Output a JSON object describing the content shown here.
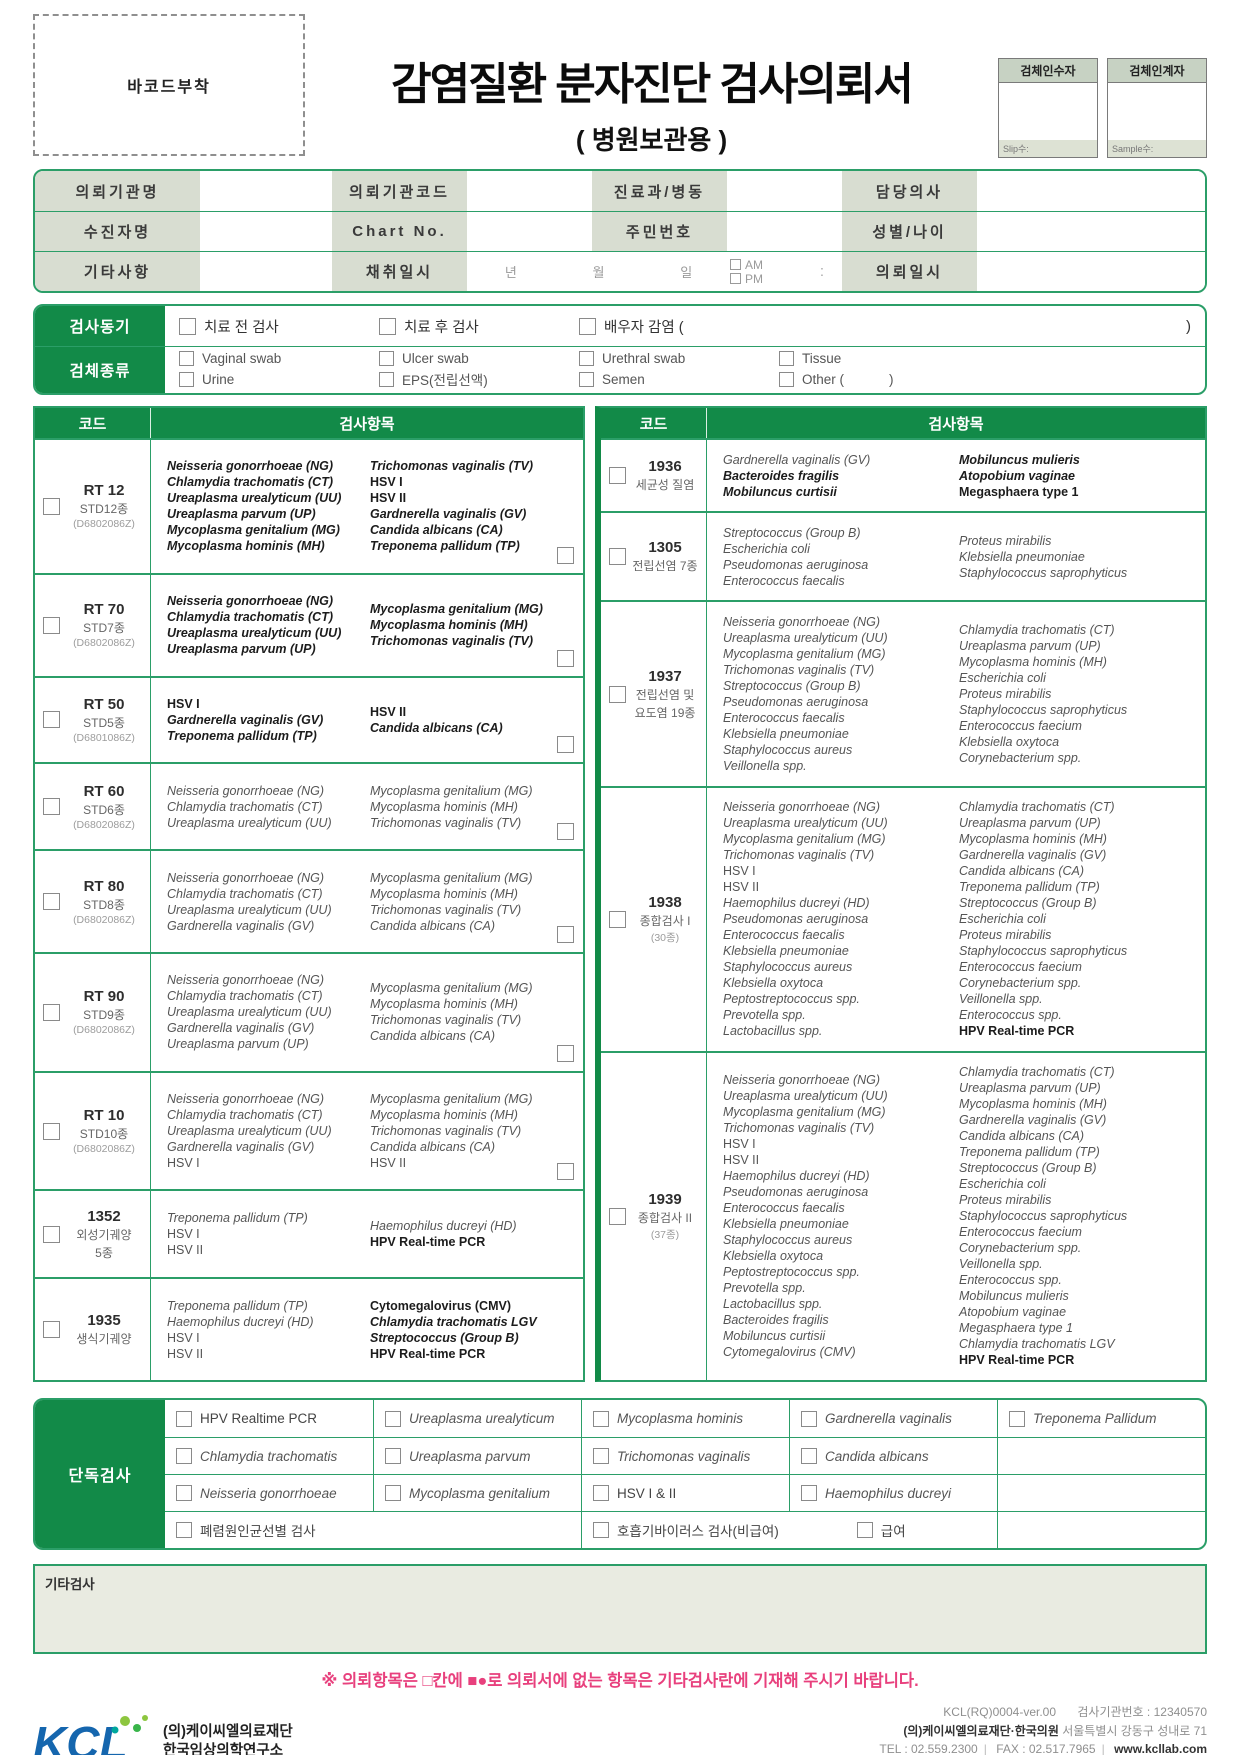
{
  "colors": {
    "green_fill": "#128a48",
    "green_border": "#2b9e68",
    "label_bg": "#d8ddd1",
    "note_pink": "#e8407d",
    "logo_blue": "#1566ae"
  },
  "header": {
    "barcode_label": "바코드부착",
    "title": "감염질환 분자진단 검사의뢰서",
    "subtitle": "( 병원보관용 )",
    "receivers": [
      {
        "title": "검체인수자",
        "footer": "Slip수:"
      },
      {
        "title": "검체인계자",
        "footer": "Sample수:"
      }
    ]
  },
  "info_table": {
    "rows": [
      {
        "c1": "의뢰기관명",
        "c2": "의뢰기관코드",
        "c3": "진료과/병동",
        "c4": "담당의사"
      },
      {
        "c1": "수진자명",
        "c2": "Chart No.",
        "c3": "주민번호",
        "c4": "성별/나이"
      }
    ],
    "row3": {
      "c1": "기타사항",
      "c2": "채취일시",
      "year": "년",
      "month": "월",
      "day": "일",
      "am": "AM",
      "pm": "PM",
      "colon": ":",
      "c4": "의뢰일시"
    }
  },
  "motive": {
    "label": "검사동기",
    "opt1": "치료 전 검사",
    "opt2": "치료 후 검사",
    "opt3": "배우자 감염 (",
    "close": ")"
  },
  "specimen": {
    "label": "검체종류",
    "r1": [
      "Vaginal swab",
      "Ulcer swab",
      "Urethral swab",
      "Tissue"
    ],
    "r2": [
      "Urine",
      "EPS(전립선액)",
      "Semen",
      "Other (            )"
    ]
  },
  "panel_table": {
    "code_header": "코드",
    "items_header": "검사항목",
    "left_panels": [
      {
        "code": "RT 12",
        "sublines": [
          "STD12종",
          "(D6802086Z)"
        ],
        "default_bold": true,
        "trailing_checkbox": true,
        "col1": [
          "Neisseria gonorrhoeae (NG)",
          "Chlamydia trachomatis (CT)",
          "Ureaplasma urealyticum (UU)",
          "Ureaplasma parvum (UP)",
          "Mycoplasma genitalium (MG)",
          "Mycoplasma hominis (MH)"
        ],
        "col2": [
          "Trichomonas vaginalis (TV)",
          "HSV I",
          "HSV II",
          "Gardnerella vaginalis (GV)",
          "Candida albicans (CA)",
          "Treponema pallidum (TP)"
        ]
      },
      {
        "code": "RT 70",
        "sublines": [
          "STD7종",
          "(D6802086Z)"
        ],
        "default_bold": true,
        "trailing_checkbox": true,
        "col1": [
          "Neisseria gonorrhoeae (NG)",
          "Chlamydia trachomatis (CT)",
          "Ureaplasma urealyticum (UU)",
          "Ureaplasma parvum (UP)"
        ],
        "col2": [
          "Mycoplasma genitalium (MG)",
          "Mycoplasma hominis (MH)",
          "Trichomonas vaginalis (TV)"
        ]
      },
      {
        "code": "RT 50",
        "sublines": [
          "STD5종",
          "(D6801086Z)"
        ],
        "default_bold": true,
        "trailing_checkbox": true,
        "col1": [
          "HSV I",
          "Gardnerella vaginalis (GV)",
          "Treponema pallidum (TP)"
        ],
        "col2": [
          "HSV II",
          "Candida albicans (CA)"
        ]
      },
      {
        "code": "RT 60",
        "sublines": [
          "STD6종",
          "(D6802086Z)"
        ],
        "default_bold": false,
        "trailing_checkbox": true,
        "col1": [
          "Neisseria gonorrhoeae (NG)",
          "Chlamydia trachomatis (CT)",
          "Ureaplasma urealyticum (UU)"
        ],
        "col2": [
          "Mycoplasma genitalium (MG)",
          "Mycoplasma hominis (MH)",
          "Trichomonas vaginalis (TV)"
        ]
      },
      {
        "code": "RT 80",
        "sublines": [
          "STD8종",
          "(D6802086Z)"
        ],
        "default_bold": false,
        "trailing_checkbox": true,
        "col1": [
          "Neisseria gonorrhoeae (NG)",
          "Chlamydia trachomatis (CT)",
          "Ureaplasma urealyticum (UU)",
          "Gardnerella vaginalis (GV)"
        ],
        "col2": [
          "Mycoplasma genitalium (MG)",
          "Mycoplasma hominis (MH)",
          "Trichomonas vaginalis (TV)",
          "Candida albicans (CA)"
        ]
      },
      {
        "code": "RT 90",
        "sublines": [
          "STD9종",
          "(D6802086Z)"
        ],
        "default_bold": false,
        "trailing_checkbox": true,
        "col1": [
          "Neisseria gonorrhoeae (NG)",
          "Chlamydia trachomatis (CT)",
          "Ureaplasma urealyticum (UU)",
          "Gardnerella vaginalis (GV)",
          "Ureaplasma parvum (UP)"
        ],
        "col2": [
          "Mycoplasma genitalium (MG)",
          "Mycoplasma hominis (MH)",
          "Trichomonas vaginalis (TV)",
          "Candida albicans (CA)"
        ]
      },
      {
        "code": "RT 10",
        "sublines": [
          "STD10종",
          "(D6802086Z)"
        ],
        "default_bold": false,
        "trailing_checkbox": true,
        "col1": [
          "Neisseria gonorrhoeae (NG)",
          "Chlamydia trachomatis (CT)",
          "Ureaplasma urealyticum (UU)",
          "Gardnerella vaginalis (GV)",
          "HSV I"
        ],
        "col2": [
          "Mycoplasma genitalium (MG)",
          "Mycoplasma hominis (MH)",
          "Trichomonas vaginalis (TV)",
          "Candida albicans (CA)",
          "HSV II"
        ]
      },
      {
        "code": "1352",
        "sublines": [
          "외성기궤양",
          "5종"
        ],
        "default_bold": false,
        "trailing_checkbox": false,
        "col1": [
          "Treponema pallidum (TP)",
          "HSV I",
          "HSV II"
        ],
        "col2": [
          "Haemophilus ducreyi (HD)",
          {
            "text": "HPV Real-time PCR",
            "bold": true
          }
        ]
      },
      {
        "code": "1935",
        "sublines": [
          "생식기궤양"
        ],
        "default_bold": false,
        "trailing_checkbox": false,
        "col1": [
          "Treponema pallidum (TP)",
          "Haemophilus ducreyi (HD)",
          "HSV I",
          "HSV II"
        ],
        "col2": [
          {
            "text": "Cytomegalovirus (CMV)",
            "bold": true,
            "italic": false
          },
          {
            "text": "Chlamydia trachomatis LGV",
            "bold": true
          },
          {
            "text": "Streptococcus (Group B)",
            "bold": true
          },
          {
            "text": "HPV Real-time PCR",
            "bold": true
          }
        ]
      }
    ],
    "right_panels": [
      {
        "code": "1936",
        "sublines": [
          "세균성 질염"
        ],
        "default_bold": false,
        "trailing_checkbox": false,
        "col1": [
          "Gardnerella vaginalis (GV)",
          {
            "text": "Bacteroides fragilis",
            "bold": true
          },
          {
            "text": "Mobiluncus curtisii",
            "bold": true
          }
        ],
        "col2": [
          {
            "text": "Mobiluncus mulieris",
            "bold": true
          },
          {
            "text": "Atopobium vaginae",
            "bold": true
          },
          {
            "text": "Megasphaera type 1",
            "bold": true,
            "italic": false
          }
        ]
      },
      {
        "code": "1305",
        "sublines": [
          "전립선염 7종"
        ],
        "default_bold": false,
        "trailing_checkbox": false,
        "col1": [
          "Streptococcus (Group B)",
          "Escherichia coli",
          "Pseudomonas aeruginosa",
          "Enterococcus faecalis"
        ],
        "col2": [
          "Proteus mirabilis",
          "Klebsiella pneumoniae",
          "Staphylococcus saprophyticus"
        ]
      },
      {
        "code": "1937",
        "sublines": [
          "전립선염 및",
          "요도염 19종"
        ],
        "default_bold": false,
        "trailing_checkbox": false,
        "col1": [
          "Neisseria gonorrhoeae (NG)",
          "Ureaplasma urealyticum (UU)",
          "Mycoplasma genitalium (MG)",
          "Trichomonas vaginalis (TV)",
          "Streptococcus (Group B)",
          "Pseudomonas aeruginosa",
          "Enterococcus faecalis",
          "Klebsiella pneumoniae",
          "Staphylococcus aureus",
          "Veillonella spp."
        ],
        "col2": [
          "Chlamydia trachomatis (CT)",
          "Ureaplasma parvum (UP)",
          "Mycoplasma hominis (MH)",
          "Escherichia coli",
          "Proteus mirabilis",
          "Staphylococcus saprophyticus",
          "Enterococcus faecium",
          "Klebsiella oxytoca",
          "Corynebacterium spp."
        ]
      },
      {
        "code": "1938",
        "sublines": [
          "종합검사 I",
          "(30종)"
        ],
        "default_bold": false,
        "trailing_checkbox": false,
        "col1": [
          "Neisseria gonorrhoeae (NG)",
          "Ureaplasma urealyticum (UU)",
          "Mycoplasma genitalium (MG)",
          "Trichomonas vaginalis (TV)",
          "HSV I",
          "HSV II",
          "Haemophilus ducreyi (HD)",
          "Pseudomonas aeruginosa",
          "Enterococcus faecalis",
          "Klebsiella pneumoniae",
          "Staphylococcus aureus",
          "Klebsiella oxytoca",
          "Peptostreptococcus spp.",
          "Prevotella spp.",
          "Lactobacillus spp."
        ],
        "col2": [
          "Chlamydia trachomatis (CT)",
          "Ureaplasma parvum (UP)",
          "Mycoplasma hominis (MH)",
          "Gardnerella vaginalis (GV)",
          "Candida albicans (CA)",
          "Treponema pallidum (TP)",
          "Streptococcus (Group B)",
          "Escherichia coli",
          "Proteus mirabilis",
          "Staphylococcus saprophyticus",
          "Enterococcus faecium",
          "Corynebacterium spp.",
          "Veillonella spp.",
          "Enterococcus spp.",
          {
            "text": "HPV Real-time PCR",
            "bold": true
          }
        ]
      },
      {
        "code": "1939",
        "sublines": [
          "종합검사 II",
          "(37종)"
        ],
        "default_bold": false,
        "trailing_checkbox": false,
        "col1": [
          "Neisseria gonorrhoeae (NG)",
          "Ureaplasma urealyticum (UU)",
          "Mycoplasma genitalium (MG)",
          "Trichomonas vaginalis (TV)",
          "HSV I",
          "HSV II",
          "Haemophilus ducreyi (HD)",
          "Pseudomonas aeruginosa",
          "Enterococcus faecalis",
          "Klebsiella pneumoniae",
          "Staphylococcus aureus",
          "Klebsiella oxytoca",
          "Peptostreptococcus spp.",
          "Prevotella spp.",
          "Lactobacillus spp.",
          "Bacteroides fragilis",
          "Mobiluncus curtisii",
          "Cytomegalovirus (CMV)"
        ],
        "col2": [
          "Chlamydia trachomatis (CT)",
          "Ureaplasma parvum (UP)",
          "Mycoplasma hominis (MH)",
          "Gardnerella vaginalis (GV)",
          "Candida albicans (CA)",
          "Treponema pallidum (TP)",
          "Streptococcus (Group B)",
          "Escherichia coli",
          "Proteus mirabilis",
          "Staphylococcus saprophyticus",
          "Enterococcus faecium",
          "Corynebacterium spp.",
          "Veillonella spp.",
          "Enterococcus spp.",
          "Mobiluncus mulieris",
          "Atopobium vaginae",
          "Megasphaera type 1",
          "Chlamydia trachomatis LGV",
          {
            "text": "HPV Real-time PCR",
            "bold": true
          }
        ]
      }
    ]
  },
  "standalone": {
    "label": "단독검사",
    "rows": [
      [
        "HPV Realtime PCR",
        "Ureaplasma urealyticum",
        "Mycoplasma hominis",
        "Gardnerella vaginalis",
        "Treponema Pallidum"
      ],
      [
        "Chlamydia trachomatis",
        "Ureaplasma parvum",
        "Trichomonas vaginalis",
        "Candida albicans",
        ""
      ],
      [
        "Neisseria gonorrhoeae",
        "Mycoplasma genitalium",
        "HSV I & II",
        "Haemophilus ducreyi",
        ""
      ]
    ],
    "last_row": {
      "wide": "폐렴원인균선별 검사",
      "respiratory": "호흡기바이러스 검사(비급여)",
      "covered": "급여"
    }
  },
  "other_tests_label": "기타검사",
  "note": "※ 의뢰항목은 □칸에 ■●로 의뢰서에 없는 항목은 기타검사란에 기재해 주시기 바랍니다.",
  "footer": {
    "logo_text": "KCL",
    "org_line1": "(의)케이씨엘의료재단",
    "org_line2": "한국임상의학연구소",
    "doc_code": "KCL(RQ)0004-ver.00",
    "org_number": "검사기관번호 : 12340570",
    "org_name_bold": "(의)케이씨엘의료재단·한국의원",
    "address": "서울특별시 강동구 성내로 71",
    "tel": "TEL : 02.559.2300",
    "fax": "FAX : 02.517.7965",
    "web": "www.kcllab.com"
  }
}
